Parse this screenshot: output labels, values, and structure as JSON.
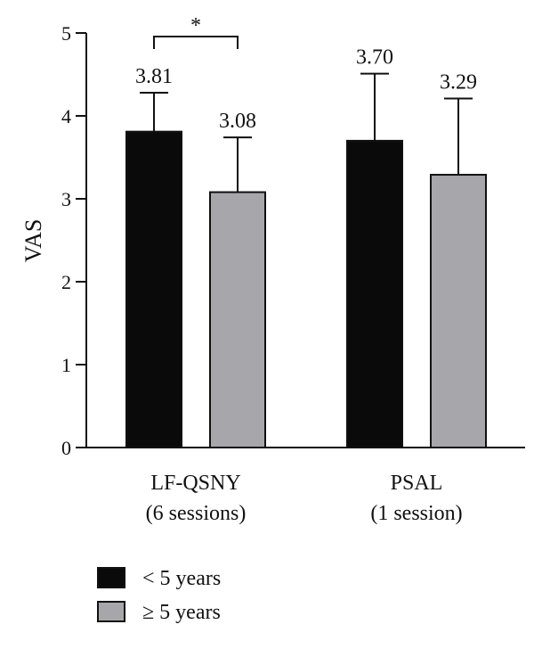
{
  "chart_data": {
    "type": "bar",
    "categories": [
      [
        "LF-QSNY",
        "(6 sessions)"
      ],
      [
        "PSAL",
        "(1 session)"
      ]
    ],
    "series": [
      {
        "name": "< 5 years",
        "values": [
          3.81,
          3.7
        ],
        "errors": [
          0.47,
          0.81
        ],
        "color": "#0a0a0a"
      },
      {
        "name": "≥ 5 years",
        "values": [
          3.08,
          3.29
        ],
        "errors": [
          0.66,
          0.92
        ],
        "color": "#a7a7ab"
      }
    ],
    "data_labels": [
      [
        "3.81",
        "3.70"
      ],
      [
        "3.08",
        "3.29"
      ]
    ],
    "ylabel": "VAS",
    "ylim": [
      0,
      5
    ],
    "yticks": [
      0,
      1,
      2,
      3,
      4,
      5
    ],
    "grid": false,
    "legend": "bottom-left",
    "significance": [
      {
        "category_index": 0,
        "between": [
          0,
          1
        ],
        "label": "*"
      }
    ]
  }
}
